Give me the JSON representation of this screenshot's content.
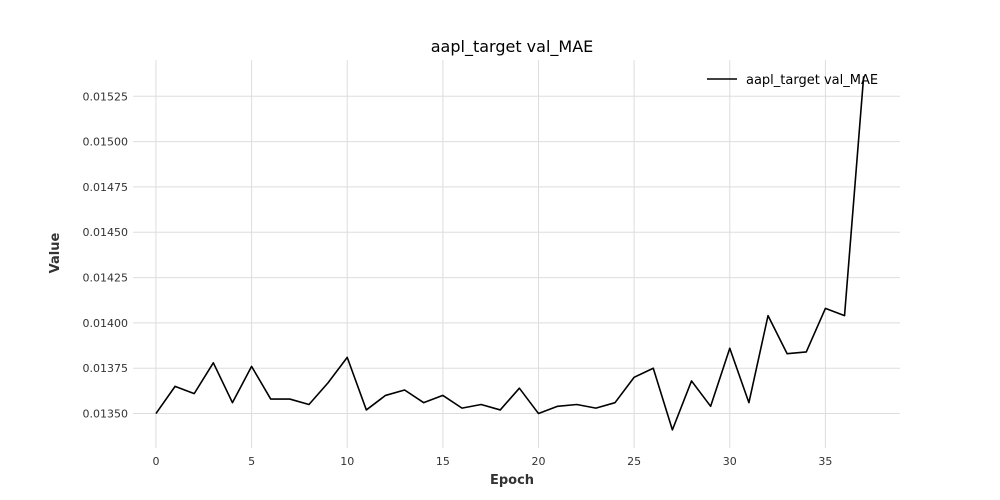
{
  "chart_data": {
    "type": "line",
    "title": "aapl_target val_MAE",
    "xlabel": "Epoch",
    "ylabel": "Value",
    "xlim": [
      -1.2,
      38.9
    ],
    "ylim": [
      0.01331,
      0.01545
    ],
    "x_ticks": [
      "0",
      "5",
      "10",
      "15",
      "20",
      "25",
      "30",
      "35"
    ],
    "y_ticks": [
      "0.01350",
      "0.01375",
      "0.01400",
      "0.01425",
      "0.01450",
      "0.01475",
      "0.01500",
      "0.01525"
    ],
    "grid": true,
    "legend_position": "top-right",
    "series": [
      {
        "name": "aapl_target val_MAE",
        "color": "#000000",
        "x": [
          0,
          1,
          2,
          3,
          4,
          5,
          6,
          7,
          8,
          9,
          10,
          11,
          12,
          13,
          14,
          15,
          16,
          17,
          18,
          19,
          20,
          21,
          22,
          23,
          24,
          25,
          26,
          27,
          28,
          29,
          30,
          31,
          32,
          33,
          34,
          35,
          36,
          37
        ],
        "y": [
          0.0135,
          0.01365,
          0.01361,
          0.01378,
          0.01356,
          0.01376,
          0.01358,
          0.01358,
          0.01355,
          0.01367,
          0.01381,
          0.01352,
          0.0136,
          0.01363,
          0.01356,
          0.0136,
          0.01353,
          0.01355,
          0.01352,
          0.01364,
          0.0135,
          0.01354,
          0.01355,
          0.01353,
          0.01356,
          0.0137,
          0.01375,
          0.01341,
          0.01368,
          0.01354,
          0.01386,
          0.01356,
          0.01404,
          0.01383,
          0.01384,
          0.01408,
          0.01404,
          0.01536
        ]
      }
    ]
  }
}
